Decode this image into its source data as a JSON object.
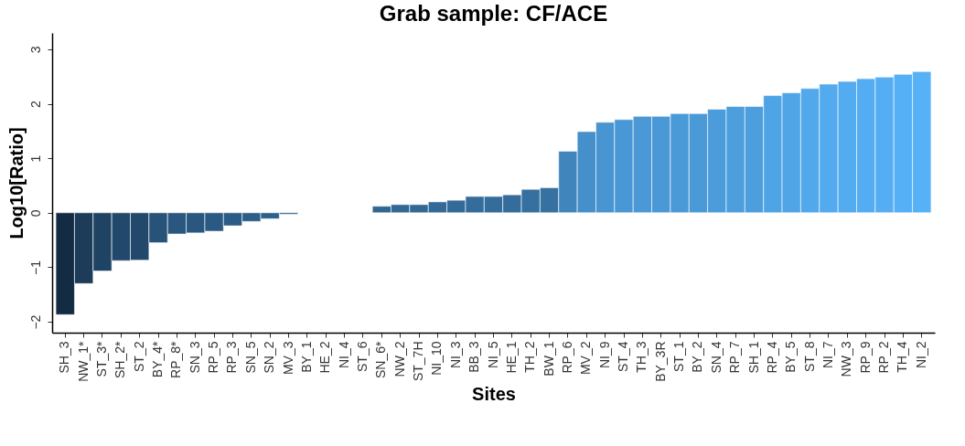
{
  "chart_data": {
    "type": "bar",
    "title": "Grab sample: CF/ACE",
    "xlabel": "Sites",
    "ylabel": "Log10[Ratio]",
    "categories": [
      "SH_3",
      "NW_1*",
      "ST_3*",
      "SH_2*",
      "ST_2",
      "BY_4*",
      "RP_8*",
      "SN_3",
      "RP_5",
      "RP_3",
      "SN_5",
      "SN_2",
      "MV_3",
      "BY_1",
      "HE_2",
      "NI_4",
      "ST_6",
      "SN_6*",
      "NW_2",
      "ST_7H",
      "NI_10",
      "NI_3",
      "BB_3",
      "NI_5",
      "HE_1",
      "TH_2",
      "BW_1",
      "RP_6",
      "MV_2",
      "NI_9",
      "ST_4",
      "TH_3",
      "BY_3R",
      "ST_1",
      "BY_2",
      "SN_4",
      "RP_7",
      "SH_1",
      "RP_4",
      "BY_5",
      "ST_8",
      "NI_7",
      "NW_3",
      "RP_9",
      "RP_2",
      "TH_4",
      "NI_2"
    ],
    "values": [
      -1.87,
      -1.3,
      -1.07,
      -0.88,
      -0.87,
      -0.55,
      -0.39,
      -0.37,
      -0.34,
      -0.24,
      -0.16,
      -0.11,
      -0.03,
      null,
      null,
      null,
      null,
      0.12,
      0.15,
      0.15,
      0.2,
      0.23,
      0.3,
      0.3,
      0.33,
      0.43,
      0.46,
      1.13,
      1.49,
      1.66,
      1.71,
      1.77,
      1.77,
      1.82,
      1.82,
      1.9,
      1.95,
      1.95,
      2.15,
      2.2,
      2.28,
      2.36,
      2.41,
      2.46,
      2.49,
      2.54,
      2.59
    ],
    "colors": [
      "#132b43",
      "#1c3c5a",
      "#1f4363",
      "#22496b",
      "#22496b",
      "#275378",
      "#29577f",
      "#29577f",
      "#2a5981",
      "#2b5c85",
      "#2d5e88",
      "#2d608a",
      "#2f628d",
      null,
      null,
      null,
      null,
      "#316793",
      "#316895",
      "#316895",
      "#326997",
      "#336a98",
      "#346c9b",
      "#346c9b",
      "#346d9c",
      "#3670a0",
      "#3671a1",
      "#4085bc",
      "#4590cb",
      "#4895d1",
      "#4997d4",
      "#4a98d6",
      "#4a98d6",
      "#4a9ad8",
      "#4a9ad8",
      "#4c9cdb",
      "#4c9edd",
      "#4c9edd",
      "#4fa4e5",
      "#50a5e7",
      "#51a8ea",
      "#53aaee",
      "#53acf0",
      "#54adf2",
      "#55aef3",
      "#55b0f5",
      "#56b1f7"
    ],
    "ylim": [
      -2.2,
      3.3
    ],
    "yticks": [
      -2,
      -1,
      0,
      1,
      2,
      3
    ],
    "grid": false,
    "legend": false
  }
}
